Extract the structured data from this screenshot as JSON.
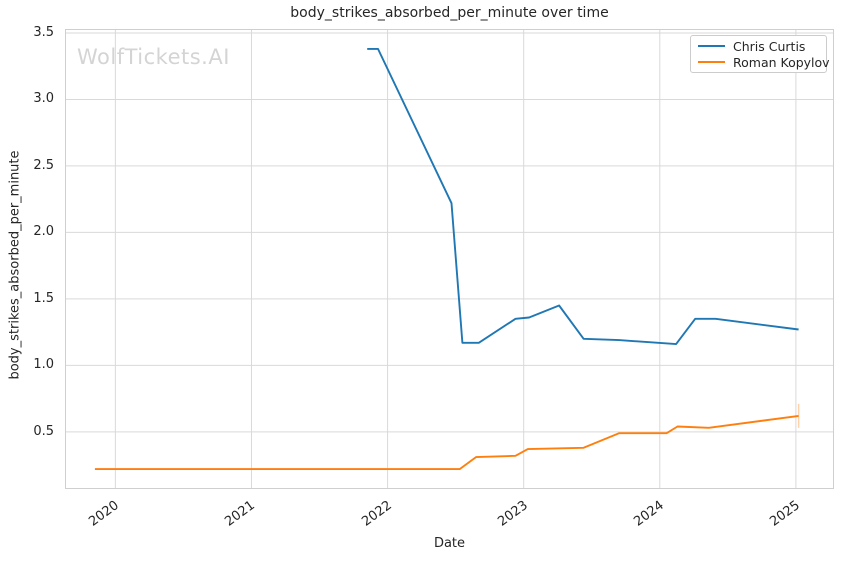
{
  "figure": {
    "watermark": "WolfTickets.AI"
  },
  "chart_data": {
    "type": "line",
    "title": "body_strikes_absorbed_per_minute over time",
    "xlabel": "Date",
    "ylabel": "body_strikes_absorbed_per_minute",
    "xlim": [
      2019.63,
      2025.28
    ],
    "ylim": [
      0.07,
      3.53
    ],
    "x_ticks": [
      "2020",
      "2021",
      "2022",
      "2023",
      "2024",
      "2025"
    ],
    "x_tick_values": [
      2020,
      2021,
      2022,
      2023,
      2024,
      2025
    ],
    "y_ticks": [
      "0.5",
      "1.0",
      "1.5",
      "2.0",
      "2.5",
      "3.0",
      "3.5"
    ],
    "y_tick_values": [
      0.5,
      1.0,
      1.5,
      2.0,
      2.5,
      3.0,
      3.5
    ],
    "grid": true,
    "grid_color": "#d9d9d9",
    "spine_color": "#cfcfcf",
    "legend_position": "upper right",
    "series": [
      {
        "name": "Chris Curtis",
        "color": "#1f77b4",
        "points": [
          [
            2021.85,
            3.38
          ],
          [
            2021.93,
            3.38
          ],
          [
            2022.47,
            2.22
          ],
          [
            2022.55,
            1.17
          ],
          [
            2022.67,
            1.17
          ],
          [
            2022.94,
            1.35
          ],
          [
            2023.04,
            1.36
          ],
          [
            2023.26,
            1.45
          ],
          [
            2023.44,
            1.2
          ],
          [
            2023.7,
            1.19
          ],
          [
            2024.12,
            1.16
          ],
          [
            2024.26,
            1.35
          ],
          [
            2024.41,
            1.35
          ],
          [
            2025.02,
            1.27
          ]
        ]
      },
      {
        "name": "Roman Kopylov",
        "color": "#ff7f0e",
        "points": [
          [
            2019.85,
            0.22
          ],
          [
            2022.53,
            0.22
          ],
          [
            2022.65,
            0.31
          ],
          [
            2022.94,
            0.32
          ],
          [
            2023.03,
            0.37
          ],
          [
            2023.44,
            0.38
          ],
          [
            2023.7,
            0.49
          ],
          [
            2024.05,
            0.49
          ],
          [
            2024.13,
            0.54
          ],
          [
            2024.36,
            0.53
          ],
          [
            2025.02,
            0.62
          ]
        ],
        "end_cap": {
          "x": 2025.02,
          "y1": 0.53,
          "y2": 0.71
        }
      }
    ]
  }
}
